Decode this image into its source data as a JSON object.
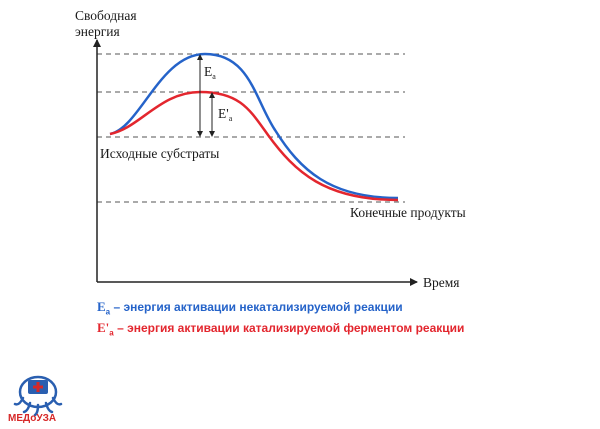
{
  "diagram": {
    "y_axis_label_line1": "Свободная",
    "y_axis_label_line2": "энергия",
    "x_axis_label": "Время",
    "label_substrates": "Исходные субстраты",
    "label_products": "Конечные продукты",
    "label_ea": "E",
    "label_ea_sub": "a",
    "label_ea_prime": "E'",
    "label_ea_prime_sub": "a",
    "colors": {
      "uncatalyzed": "#2563c9",
      "catalyzed": "#e3262e",
      "axis": "#222222",
      "dashed": "#555555"
    }
  },
  "legend": {
    "blue_symbol": "E",
    "blue_sub": "a",
    "blue_text": " – энергия активации некатализируемой реакции",
    "red_symbol": "E'",
    "red_sub": "a",
    "red_text": " – энергия активации катализируемой ферментом реакции"
  },
  "logo": {
    "text": "МЕДоУЗА",
    "colors": {
      "blue": "#2a5fb0",
      "red": "#d62828"
    }
  }
}
